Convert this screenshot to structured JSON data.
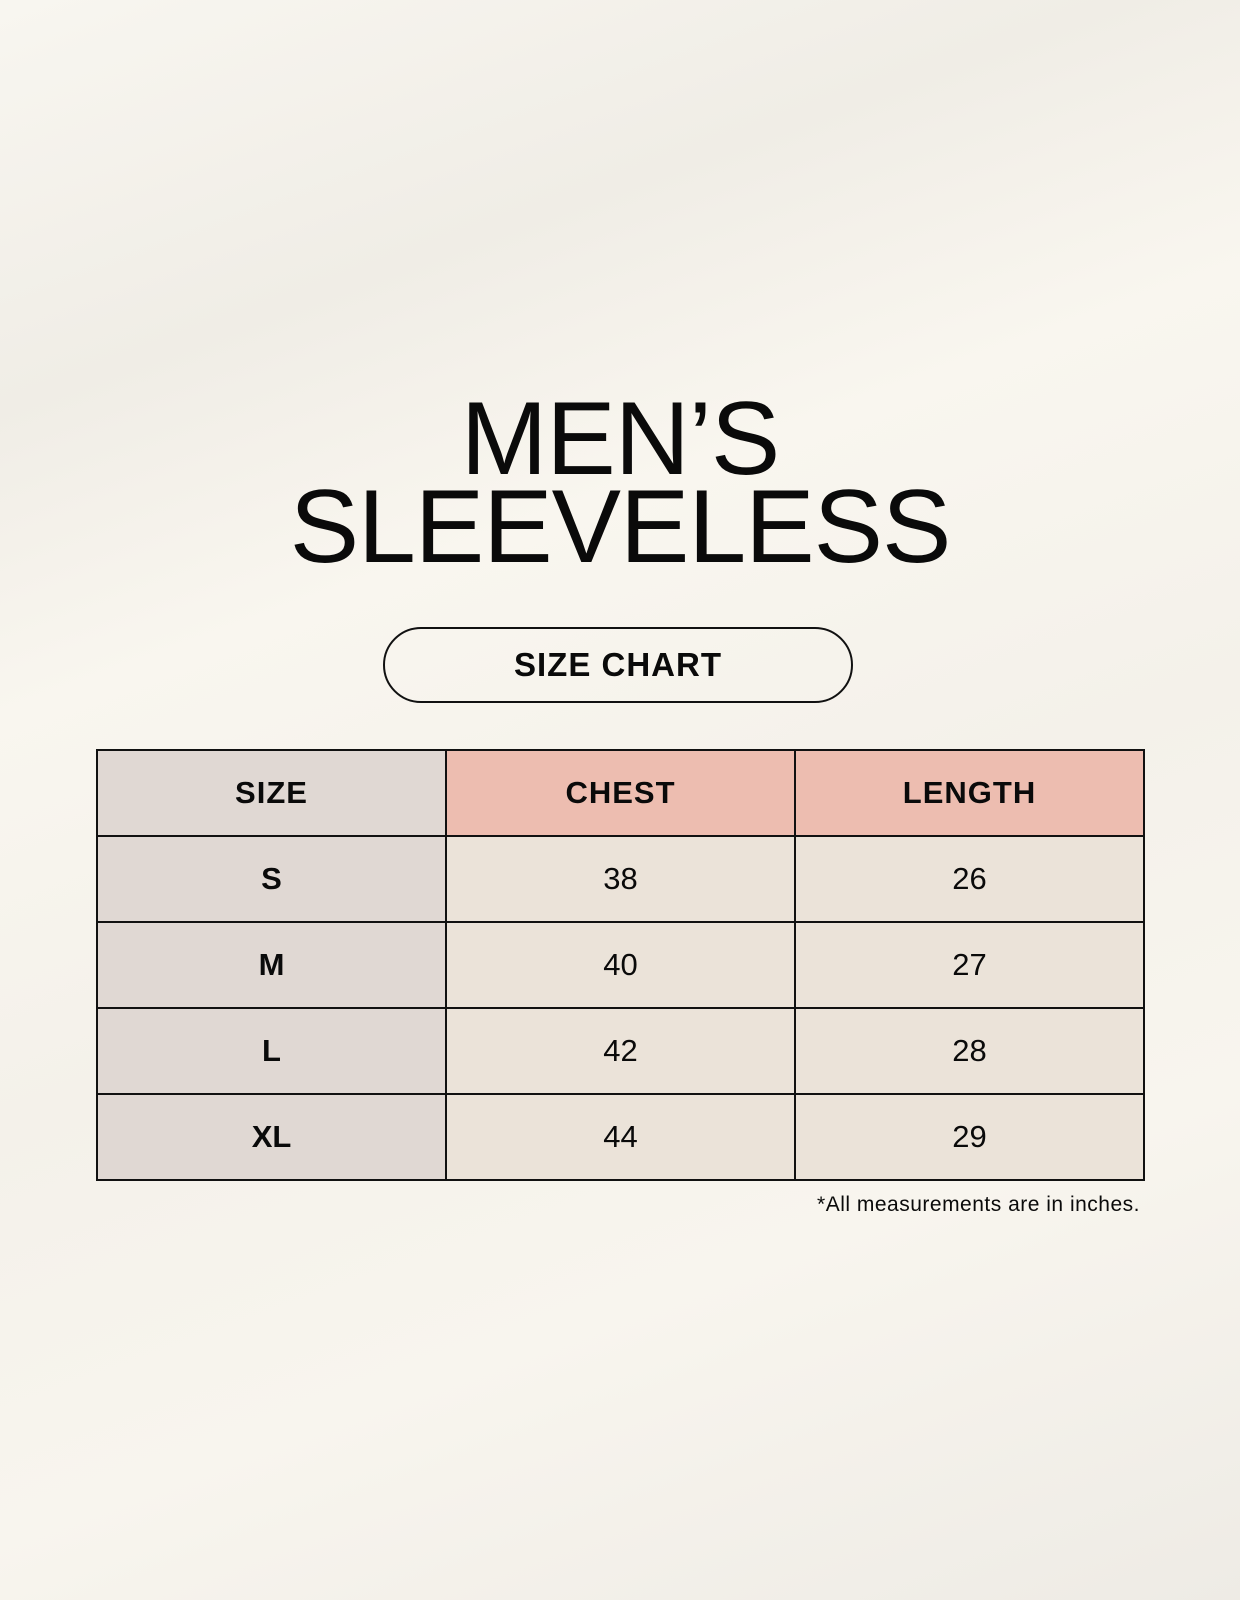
{
  "title": {
    "line1": "MEN’S",
    "line2": "SLEEVELESS"
  },
  "badge": "SIZE CHART",
  "table": {
    "headers": [
      "SIZE",
      "CHEST",
      "LENGTH"
    ],
    "rows": [
      {
        "size": "S",
        "chest": "38",
        "length": "26"
      },
      {
        "size": "M",
        "chest": "40",
        "length": "27"
      },
      {
        "size": "L",
        "chest": "42",
        "length": "28"
      },
      {
        "size": "XL",
        "chest": "44",
        "length": "29"
      }
    ]
  },
  "footnote": "*All measurements are in inches.",
  "colors": {
    "size_column": "#e0d8d3",
    "header_accent": "#edbdb0",
    "cell": "#ebe3d9"
  }
}
